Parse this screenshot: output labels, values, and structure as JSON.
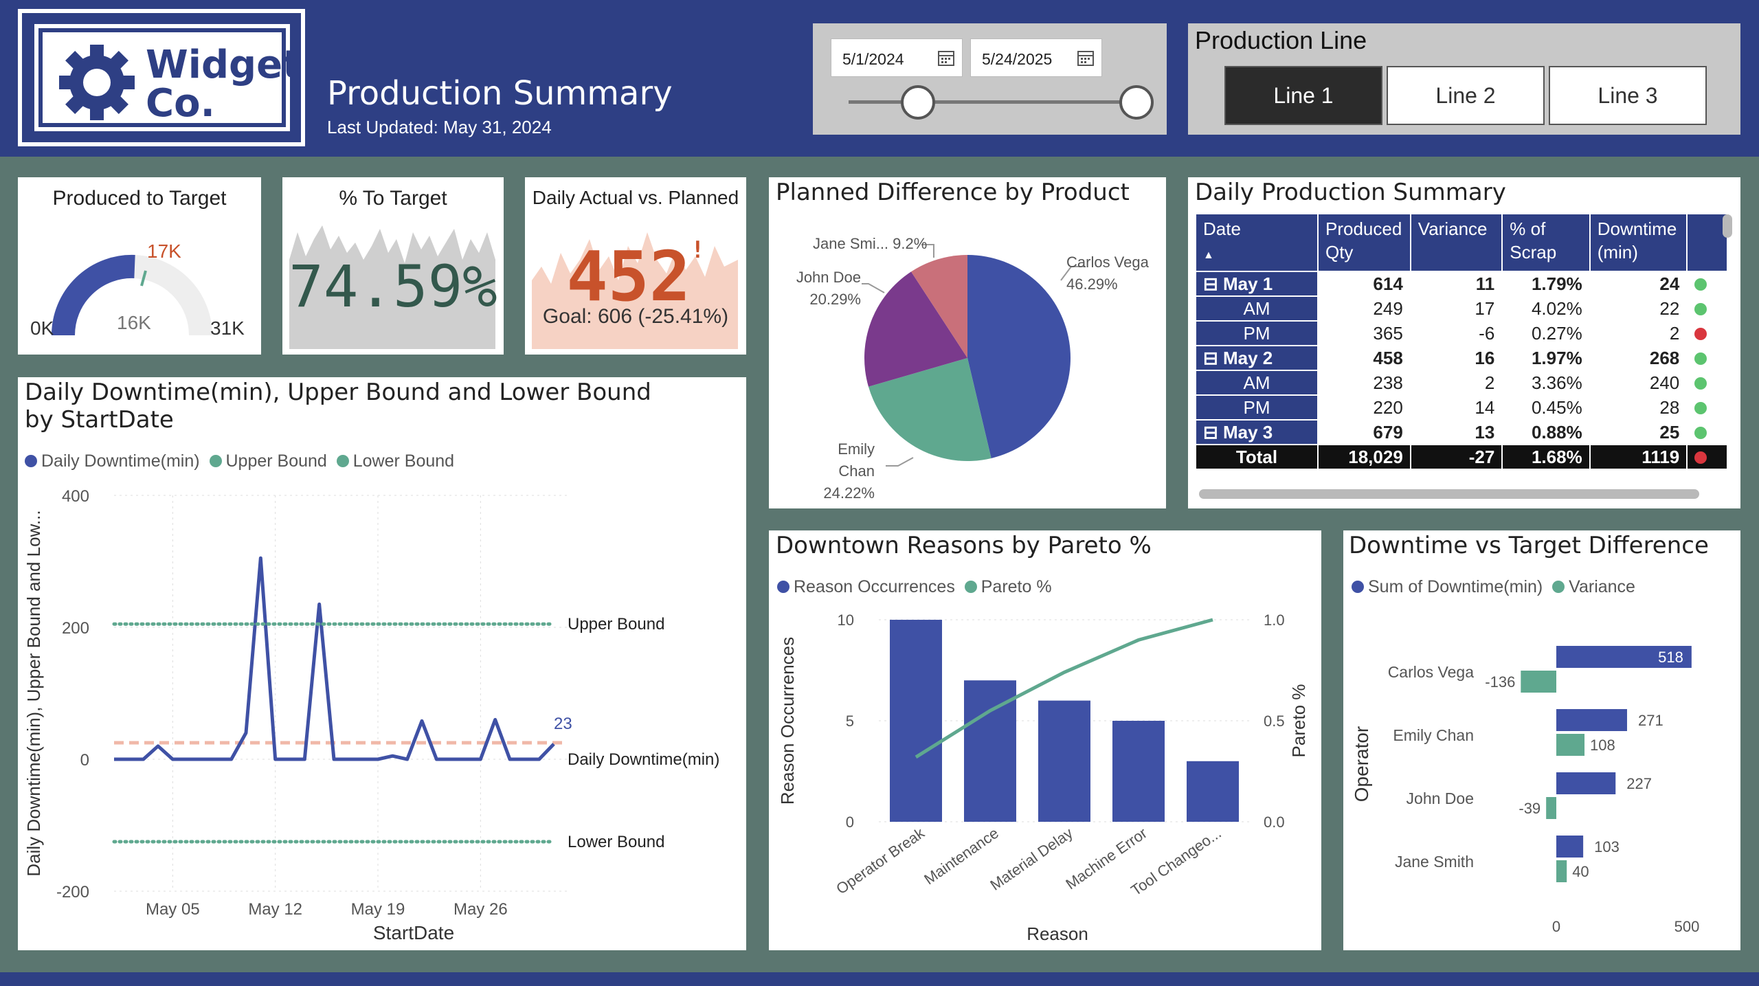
{
  "brand": {
    "logo_line1": "Widget",
    "logo_line2": "Co.",
    "primary": "#2e3f84",
    "accent_green": "#5fa88f",
    "accent_red": "#c8522b"
  },
  "header": {
    "title": "Production Summary",
    "last_updated": "Last Updated: May 31, 2024"
  },
  "date_filter": {
    "start": "5/1/2024",
    "end": "5/24/2025",
    "icon": "calendar-icon"
  },
  "production_line": {
    "title": "Production Line",
    "options": [
      "Line 1",
      "Line 2",
      "Line 3"
    ],
    "selected": "Line 1"
  },
  "kpi_produced_to_target": {
    "title": "Produced to Target",
    "min_label": "0K",
    "max_label": "31K",
    "value_label": "16K",
    "target_label": "17K",
    "value": 16,
    "target": 17,
    "max": 31
  },
  "kpi_pct_to_target": {
    "title": "% To Target",
    "value": "74.59%"
  },
  "kpi_daily_actual": {
    "title": "Daily Actual vs. Planned",
    "value": "452",
    "marker": "!",
    "goal": "Goal: 606 (-25.41%)"
  },
  "downtime_chart": {
    "title": "Daily Downtime(min), Upper Bound and Lower Bound by StartDate",
    "legend": [
      "Daily Downtime(min)",
      "Upper Bound",
      "Lower Bound"
    ],
    "series_colors": [
      "#3f51a5",
      "#5fa88f",
      "#5fa88f"
    ],
    "right_labels": {
      "upper": "Upper Bound",
      "daily": "Daily Downtime(min)",
      "lower": "Lower Bound"
    },
    "last_value_label": "23"
  },
  "pie_chart": {
    "title": "Planned Difference by Product",
    "labels": [
      {
        "name": "Carlos Vega",
        "pct": "46.29%"
      },
      {
        "name": "Emily Chan",
        "pct": "24.22%"
      },
      {
        "name": "John Doe",
        "pct": "20.29%"
      },
      {
        "name": "Jane Smi...",
        "pct": "9.2%"
      }
    ]
  },
  "summary_table": {
    "title": "Daily Production Summary",
    "headers": {
      "date": "Date",
      "qty_1": "Produced",
      "qty_2": "Qty",
      "variance": "Variance",
      "scrap_1": "% of",
      "scrap_2": "Scrap",
      "down_1": "Downtime",
      "down_2": "(min)"
    },
    "rows": [
      {
        "date": "May 1",
        "qty": "614",
        "variance": "11",
        "scrap": "1.79%",
        "downtime": "24",
        "status": "green",
        "group": true
      },
      {
        "date": "AM",
        "qty": "249",
        "variance": "17",
        "scrap": "4.02%",
        "downtime": "22",
        "status": "green",
        "group": false
      },
      {
        "date": "PM",
        "qty": "365",
        "variance": "-6",
        "scrap": "0.27%",
        "downtime": "2",
        "status": "red",
        "group": false
      },
      {
        "date": "May 2",
        "qty": "458",
        "variance": "16",
        "scrap": "1.97%",
        "downtime": "268",
        "status": "green",
        "group": true
      },
      {
        "date": "AM",
        "qty": "238",
        "variance": "2",
        "scrap": "3.36%",
        "downtime": "240",
        "status": "green",
        "group": false
      },
      {
        "date": "PM",
        "qty": "220",
        "variance": "14",
        "scrap": "0.45%",
        "downtime": "28",
        "status": "green",
        "group": false
      },
      {
        "date": "May 3",
        "qty": "679",
        "variance": "13",
        "scrap": "0.88%",
        "downtime": "25",
        "status": "green",
        "group": true
      }
    ],
    "total": {
      "date": "Total",
      "qty": "18,029",
      "variance": "-27",
      "scrap": "1.68%",
      "downtime": "1119",
      "status": "red"
    }
  },
  "pareto": {
    "title": "Downtown Reasons by Pareto %",
    "legend": [
      "Reason Occurrences",
      "Pareto %"
    ],
    "xlabel": "Reason",
    "ylabel_left": "Reason Occurrences",
    "ylabel_right": "Pareto %"
  },
  "variance_bars": {
    "title": "Downtime vs Target Difference",
    "legend": [
      "Sum of Downtime(min)",
      "Variance"
    ],
    "ylabel": "Operator"
  },
  "chart_data": [
    {
      "type": "line",
      "title": "Daily Downtime(min), Upper Bound and Lower Bound by StartDate",
      "xlabel": "StartDate",
      "ylabel": "Daily Downtime(min), Upper Bound and Low...",
      "x_ticks": [
        "May 05",
        "May 12",
        "May 19",
        "May 26"
      ],
      "y_ticks": [
        "400",
        "200",
        "0",
        "-200"
      ],
      "ylim": [
        -200,
        400
      ],
      "x": [
        "2024-05-01",
        "2024-05-02",
        "2024-05-03",
        "2024-05-04",
        "2024-05-05",
        "2024-05-06",
        "2024-05-07",
        "2024-05-08",
        "2024-05-09",
        "2024-05-10",
        "2024-05-11",
        "2024-05-12",
        "2024-05-13",
        "2024-05-14",
        "2024-05-15",
        "2024-05-16",
        "2024-05-17",
        "2024-05-18",
        "2024-05-19",
        "2024-05-20",
        "2024-05-21",
        "2024-05-22",
        "2024-05-23",
        "2024-05-24",
        "2024-05-25",
        "2024-05-26",
        "2024-05-27",
        "2024-05-28",
        "2024-05-29",
        "2024-05-30",
        "2024-05-31"
      ],
      "series": [
        {
          "name": "Daily Downtime(min)",
          "values": [
            0,
            0,
            0,
            20,
            0,
            0,
            0,
            0,
            0,
            40,
            305,
            0,
            0,
            0,
            235,
            0,
            0,
            0,
            0,
            5,
            0,
            58,
            0,
            0,
            0,
            0,
            60,
            0,
            0,
            0,
            23
          ]
        },
        {
          "name": "Upper Bound",
          "values": [
            205,
            205,
            205,
            205,
            205,
            205,
            205,
            205,
            205,
            205,
            205,
            205,
            205,
            205,
            205,
            205,
            205,
            205,
            205,
            205,
            205,
            205,
            205,
            205,
            205,
            205,
            205,
            205,
            205,
            205,
            205
          ]
        },
        {
          "name": "Lower Bound",
          "values": [
            -125,
            -125,
            -125,
            -125,
            -125,
            -125,
            -125,
            -125,
            -125,
            -125,
            -125,
            -125,
            -125,
            -125,
            -125,
            -125,
            -125,
            -125,
            -125,
            -125,
            -125,
            -125,
            -125,
            -125,
            -125,
            -125,
            -125,
            -125,
            -125,
            -125,
            -125
          ]
        }
      ],
      "reference_line": 25,
      "legend_position": "top-left"
    },
    {
      "type": "pie",
      "title": "Planned Difference by Product",
      "categories": [
        "Carlos Vega",
        "Emily Chan",
        "John Doe",
        "Jane Smith"
      ],
      "values": [
        46.29,
        24.22,
        20.29,
        9.2
      ],
      "colors": [
        "#3f51a5",
        "#5fa88f",
        "#7a3a8c",
        "#c9707a"
      ]
    },
    {
      "type": "bar",
      "title": "Downtown Reasons by Pareto %",
      "categories": [
        "Operator Break",
        "Maintenance",
        "Material Delay",
        "Machine Error",
        "Tool Changeo..."
      ],
      "series": [
        {
          "name": "Reason Occurrences",
          "values": [
            10,
            7,
            6,
            5,
            3
          ]
        },
        {
          "name": "Pareto %",
          "values": [
            0.32,
            0.55,
            0.74,
            0.9,
            1.0
          ]
        }
      ],
      "ylim": [
        0,
        10
      ],
      "y2lim": [
        0,
        1.0
      ],
      "y_ticks": [
        "10",
        "5",
        "0"
      ],
      "y2_ticks": [
        "1.0",
        "0.5",
        "0.0"
      ]
    },
    {
      "type": "bar",
      "title": "Downtime vs Target Difference",
      "categories": [
        "Carlos Vega",
        "Emily Chan",
        "John Doe",
        "Jane Smith"
      ],
      "series": [
        {
          "name": "Sum of Downtime(min)",
          "values": [
            518,
            271,
            227,
            103
          ]
        },
        {
          "name": "Variance",
          "values": [
            -136,
            108,
            -39,
            40
          ]
        }
      ],
      "x_ticks": [
        "0",
        "500"
      ],
      "orientation": "horizontal"
    }
  ]
}
